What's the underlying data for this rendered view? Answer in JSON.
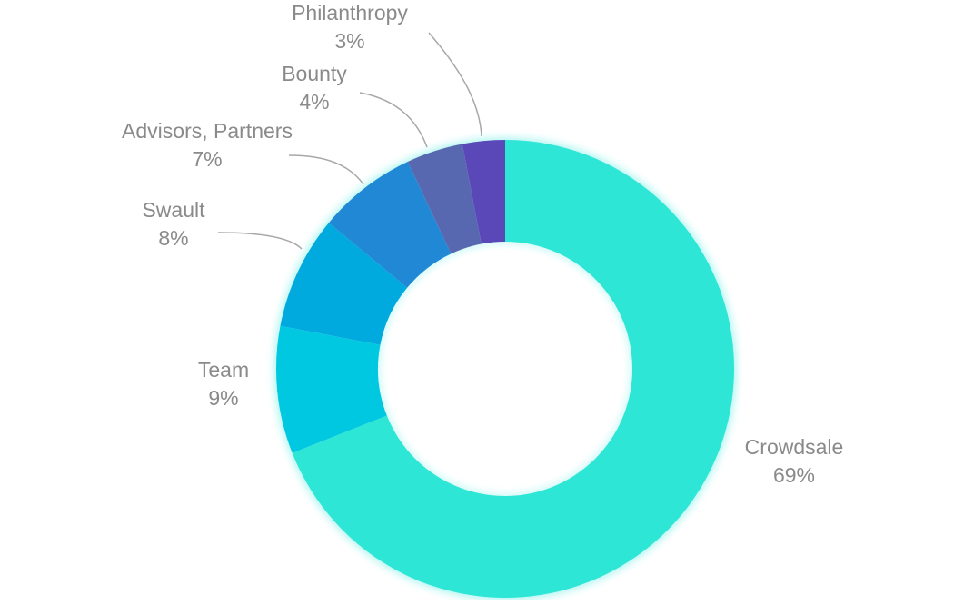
{
  "chart_data": {
    "type": "pie",
    "variant": "donut",
    "title": "",
    "legend": "none",
    "slices": [
      {
        "label": "Crowdsale",
        "value": 69,
        "display": "69%",
        "color": "#2ee6d6"
      },
      {
        "label": "Team",
        "value": 9,
        "display": "9%",
        "color": "#00c8e0"
      },
      {
        "label": "Swault",
        "value": 8,
        "display": "8%",
        "color": "#00aadf"
      },
      {
        "label": "Advisors, Partners",
        "value": 7,
        "display": "7%",
        "color": "#2088d4"
      },
      {
        "label": "Bounty",
        "value": 4,
        "display": "4%",
        "color": "#5868b0"
      },
      {
        "label": "Philanthropy",
        "value": 3,
        "display": "3%",
        "color": "#5a48b8"
      }
    ]
  },
  "colors": {
    "label_text": "#8a8a8a",
    "leader_line": "#a8a8a8",
    "glow": "#2ee6d6"
  }
}
